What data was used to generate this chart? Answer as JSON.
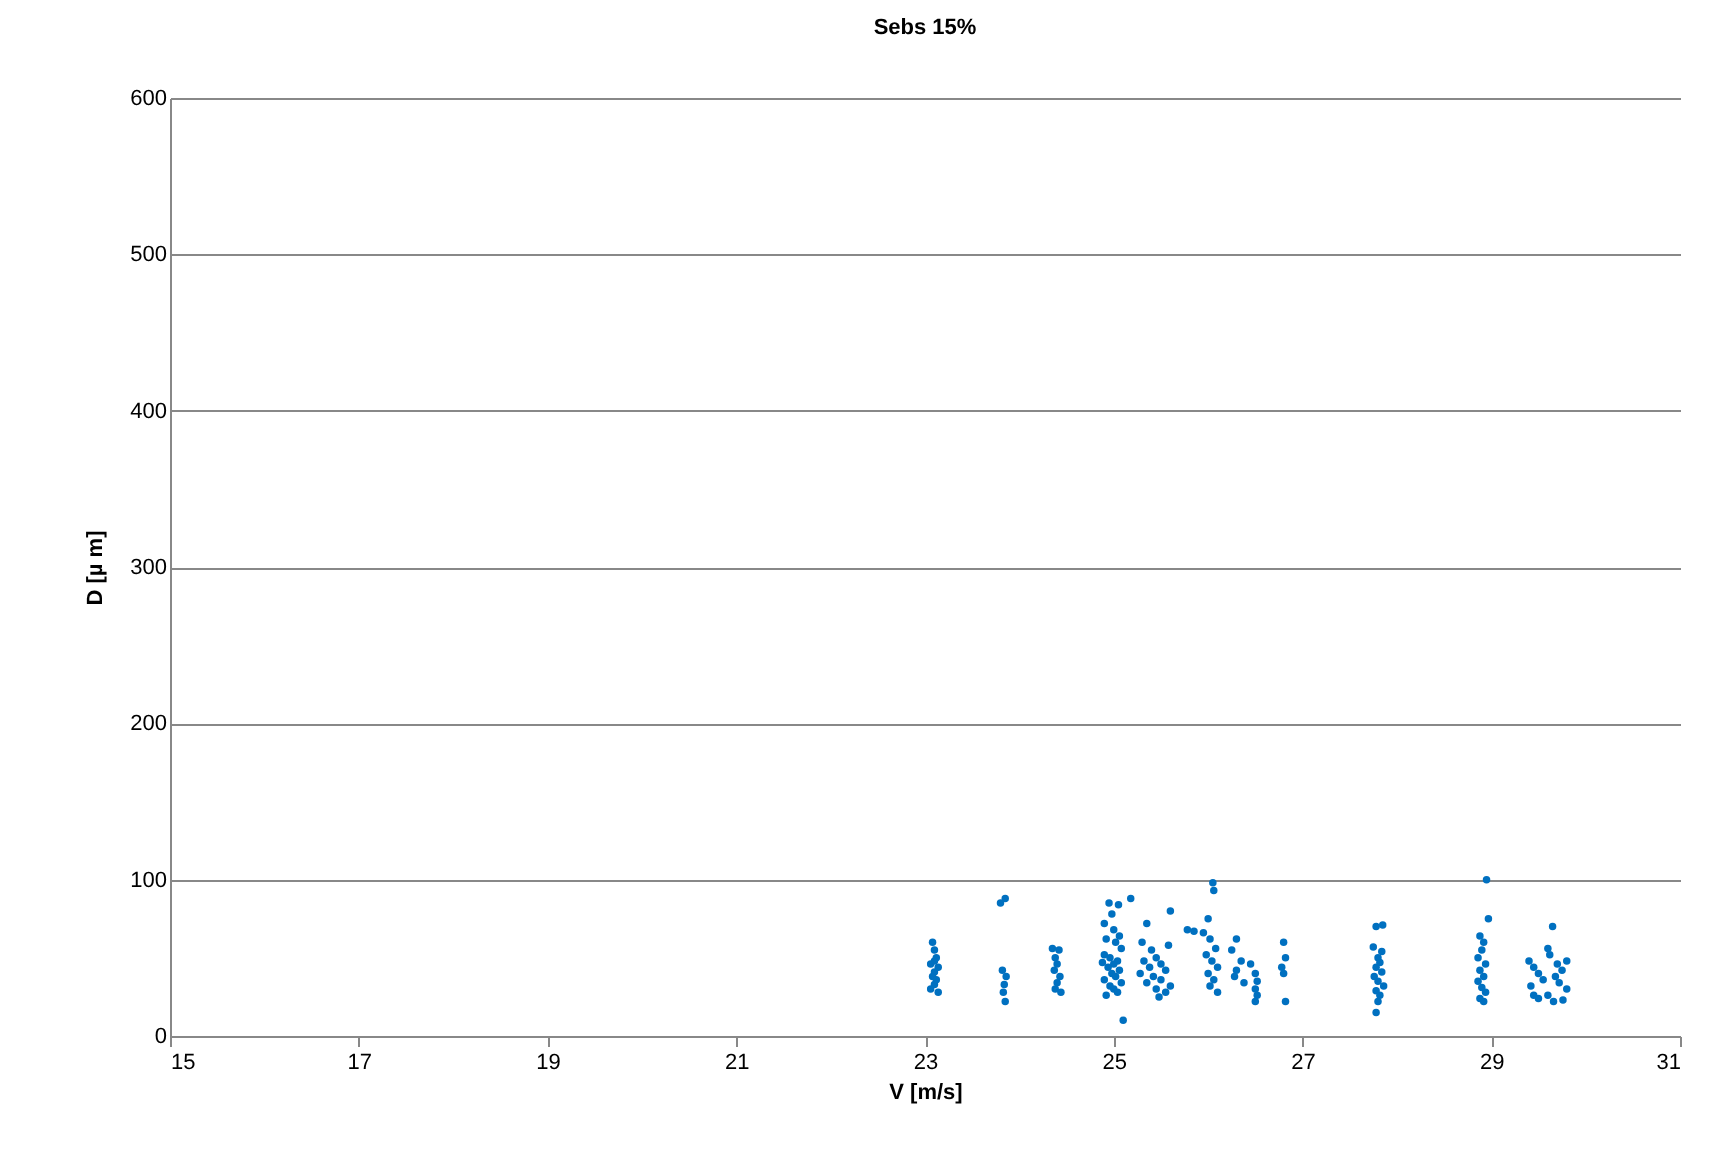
{
  "chart_data": {
    "type": "scatter",
    "title": "Sebs 15%",
    "xlabel": "V [m/s]",
    "ylabel": "D [µ m]",
    "xlim": [
      15,
      31
    ],
    "xticks": [
      15,
      17,
      19,
      21,
      23,
      25,
      27,
      29,
      31
    ],
    "ylim": [
      0,
      600
    ],
    "yticks": [
      0,
      100,
      200,
      300,
      400,
      500,
      600
    ],
    "grid": "y",
    "marker": "circle",
    "series": [
      {
        "color": "#0070c0",
        "x": [
          23.08,
          23.1,
          23.12,
          23.06,
          23.14,
          23.1,
          23.08,
          23.12,
          23.1,
          23.06,
          23.14,
          23.1,
          23.85,
          23.8,
          23.82,
          23.86,
          23.84,
          23.83,
          23.85,
          24.35,
          24.42,
          24.38,
          24.4,
          24.37,
          24.43,
          24.4,
          24.38,
          24.44,
          24.9,
          24.95,
          25.05,
          24.98,
          25.0,
          24.92,
          25.02,
          25.08,
          24.9,
          24.96,
          25.04,
          25.0,
          24.94,
          25.06,
          24.98,
          25.02,
          24.9,
          25.08,
          24.96,
          25.0,
          25.04,
          24.92,
          25.1,
          25.06,
          24.88,
          25.18,
          25.35,
          25.3,
          25.4,
          25.45,
          25.32,
          25.5,
          25.38,
          25.55,
          25.28,
          25.42,
          25.5,
          25.35,
          25.6,
          25.45,
          25.55,
          25.6,
          25.58,
          25.48,
          25.78,
          25.85,
          25.95,
          26.05,
          26.06,
          26.0,
          26.02,
          26.08,
          25.98,
          26.04,
          26.1,
          26.0,
          26.06,
          26.02,
          26.1,
          26.3,
          26.25,
          26.35,
          26.3,
          26.28,
          26.38,
          26.45,
          26.5,
          26.52,
          26.5,
          26.52,
          26.5,
          26.8,
          26.82,
          26.78,
          26.8,
          26.82,
          27.78,
          27.85,
          27.75,
          27.8,
          27.82,
          27.78,
          27.84,
          27.76,
          27.8,
          27.86,
          27.78,
          27.82,
          27.8,
          27.78,
          27.84,
          28.95,
          28.97,
          28.88,
          28.92,
          28.9,
          28.86,
          28.94,
          28.88,
          28.92,
          28.86,
          28.9,
          28.94,
          28.88,
          28.92,
          29.65,
          29.6,
          29.4,
          29.45,
          29.5,
          29.55,
          29.42,
          29.62,
          29.7,
          29.75,
          29.68,
          29.72,
          29.8,
          29.6,
          29.5,
          29.66,
          29.76,
          29.8,
          29.45
        ],
        "values": [
          60,
          55,
          50,
          46,
          44,
          41,
          38,
          36,
          33,
          30,
          28,
          48,
          88,
          85,
          42,
          38,
          33,
          28,
          22,
          56,
          55,
          50,
          46,
          42,
          38,
          34,
          30,
          28,
          72,
          85,
          84,
          78,
          68,
          62,
          60,
          56,
          52,
          50,
          48,
          46,
          44,
          42,
          40,
          38,
          36,
          34,
          32,
          30,
          28,
          26,
          10,
          64,
          47,
          88,
          72,
          60,
          55,
          50,
          48,
          46,
          44,
          42,
          40,
          38,
          36,
          34,
          32,
          30,
          28,
          80,
          58,
          25,
          68,
          67,
          66,
          98,
          93,
          75,
          62,
          56,
          52,
          48,
          44,
          40,
          36,
          32,
          28,
          62,
          55,
          48,
          42,
          38,
          34,
          46,
          40,
          35,
          30,
          26,
          22,
          60,
          50,
          44,
          40,
          22,
          70,
          71,
          57,
          50,
          47,
          44,
          41,
          38,
          35,
          32,
          29,
          26,
          22,
          15,
          54,
          100,
          75,
          64,
          60,
          55,
          50,
          46,
          42,
          38,
          35,
          31,
          28,
          24,
          22,
          70,
          56,
          48,
          44,
          40,
          36,
          32,
          52,
          46,
          42,
          38,
          34,
          30,
          26,
          24,
          22,
          23,
          48,
          26
        ]
      }
    ]
  }
}
